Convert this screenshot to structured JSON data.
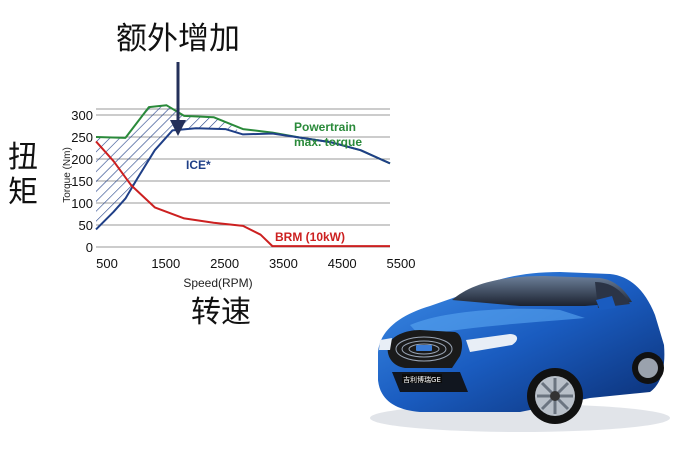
{
  "annotation": {
    "label": "额外增加"
  },
  "outer_labels": {
    "y_chinese": "扭矩",
    "x_chinese": "转速"
  },
  "car": {
    "badge_text": "吉利博瑞GE"
  },
  "chart_data": {
    "type": "line",
    "title": "",
    "xlabel": "Speed(RPM)",
    "ylabel": "Torque (Nm)",
    "xlim": [
      500,
      5500
    ],
    "ylim": [
      0,
      300
    ],
    "x_ticks": [
      500,
      1500,
      2500,
      3500,
      4500,
      5500
    ],
    "y_ticks": [
      0,
      50,
      100,
      150,
      200,
      250,
      300
    ],
    "grid": true,
    "series": [
      {
        "name": "Powertrain max. torque",
        "color": "#2a8a3a",
        "label_lines": [
          "Powertrain",
          "max. torque"
        ],
        "x": [
          500,
          1000,
          1400,
          1700,
          2000,
          2500,
          3000,
          3500,
          4000,
          4500,
          5000,
          5500
        ],
        "y": [
          250,
          248,
          318,
          322,
          298,
          295,
          268,
          260,
          248,
          238,
          220,
          190
        ]
      },
      {
        "name": "ICE*",
        "color": "#1f3f87",
        "label_lines": [
          "ICE*"
        ],
        "x": [
          500,
          800,
          1000,
          1200,
          1500,
          1800,
          2200,
          2700,
          3000,
          3500,
          4000,
          4500,
          5000,
          5500
        ],
        "y": [
          40,
          80,
          110,
          155,
          220,
          265,
          270,
          268,
          256,
          258,
          248,
          238,
          220,
          190
        ]
      },
      {
        "name": "BRM (10kW)",
        "color": "#cc2020",
        "label_lines": [
          "BRM (10kW)"
        ],
        "x": [
          500,
          800,
          1100,
          1500,
          2000,
          2500,
          3000,
          3300,
          3500,
          4500,
          5500
        ],
        "y": [
          240,
          195,
          140,
          90,
          65,
          55,
          48,
          28,
          2,
          2,
          2
        ]
      }
    ]
  }
}
